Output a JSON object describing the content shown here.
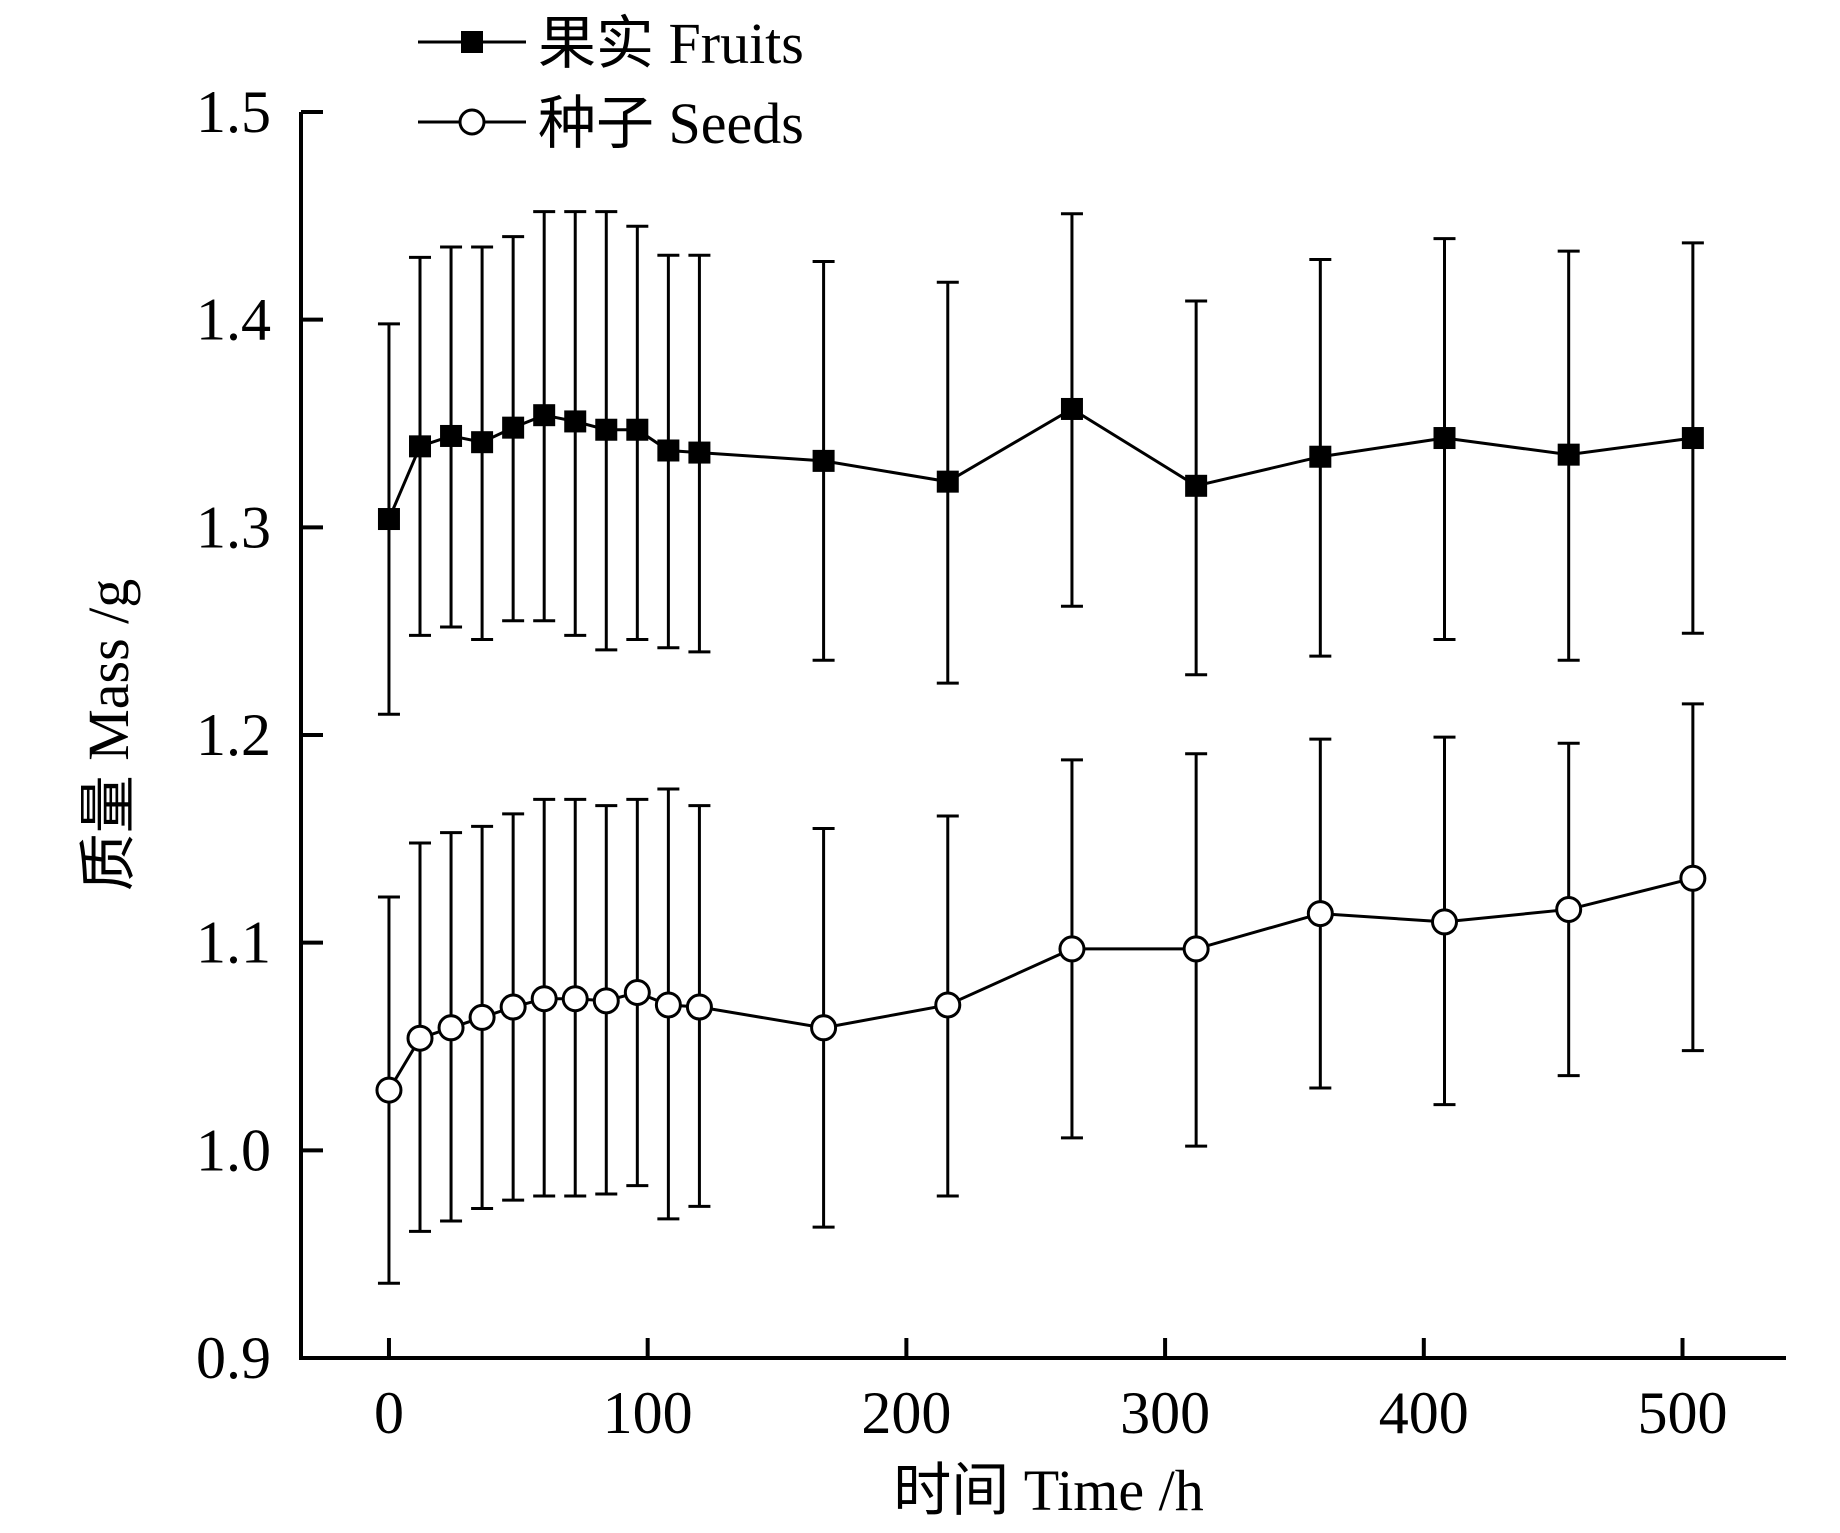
{
  "chart_data": {
    "type": "line",
    "title": "",
    "xlabel": "时间 Time /h",
    "ylabel": "质量 Mass /g",
    "xlim": [
      -34,
      540
    ],
    "ylim": [
      0.9,
      1.5
    ],
    "xticks": [
      0,
      100,
      200,
      300,
      400,
      500
    ],
    "yticks": [
      0.9,
      1.0,
      1.1,
      1.2,
      1.3,
      1.4,
      1.5
    ],
    "xtick_labels": [
      "0",
      "100",
      "200",
      "300",
      "400",
      "500"
    ],
    "ytick_labels": [
      "0.9",
      "1.0",
      "1.1",
      "1.2",
      "1.3",
      "1.4",
      "1.5"
    ],
    "grid": false,
    "legend_position": "top-left",
    "x": [
      0,
      12,
      24,
      36,
      48,
      60,
      72,
      84,
      96,
      108,
      120,
      168,
      216,
      264,
      312,
      360,
      408,
      456,
      504
    ],
    "series": [
      {
        "name": "果实 Fruits",
        "marker": "filled-square",
        "color": "#000000",
        "values": [
          1.304,
          1.339,
          1.344,
          1.341,
          1.348,
          1.354,
          1.351,
          1.347,
          1.347,
          1.337,
          1.336,
          1.332,
          1.322,
          1.357,
          1.32,
          1.334,
          1.343,
          1.335,
          1.343
        ],
        "error_low": [
          1.21,
          1.248,
          1.252,
          1.246,
          1.255,
          1.255,
          1.248,
          1.241,
          1.246,
          1.242,
          1.24,
          1.236,
          1.225,
          1.262,
          1.229,
          1.238,
          1.246,
          1.236,
          1.249
        ],
        "error_high": [
          1.398,
          1.43,
          1.435,
          1.435,
          1.44,
          1.452,
          1.452,
          1.452,
          1.445,
          1.431,
          1.431,
          1.428,
          1.418,
          1.451,
          1.409,
          1.429,
          1.439,
          1.433,
          1.437
        ]
      },
      {
        "name": "种子 Seeds",
        "marker": "open-circle",
        "color": "#000000",
        "values": [
          1.029,
          1.054,
          1.059,
          1.064,
          1.069,
          1.073,
          1.073,
          1.072,
          1.076,
          1.07,
          1.069,
          1.059,
          1.07,
          1.097,
          1.097,
          1.114,
          1.11,
          1.116,
          1.131
        ],
        "error_low": [
          0.936,
          0.961,
          0.966,
          0.972,
          0.976,
          0.978,
          0.978,
          0.979,
          0.983,
          0.967,
          0.973,
          0.963,
          0.978,
          1.006,
          1.002,
          1.03,
          1.022,
          1.036,
          1.048
        ],
        "error_high": [
          1.122,
          1.148,
          1.153,
          1.156,
          1.162,
          1.169,
          1.169,
          1.166,
          1.169,
          1.174,
          1.166,
          1.155,
          1.161,
          1.188,
          1.191,
          1.198,
          1.199,
          1.196,
          1.215
        ]
      }
    ]
  }
}
